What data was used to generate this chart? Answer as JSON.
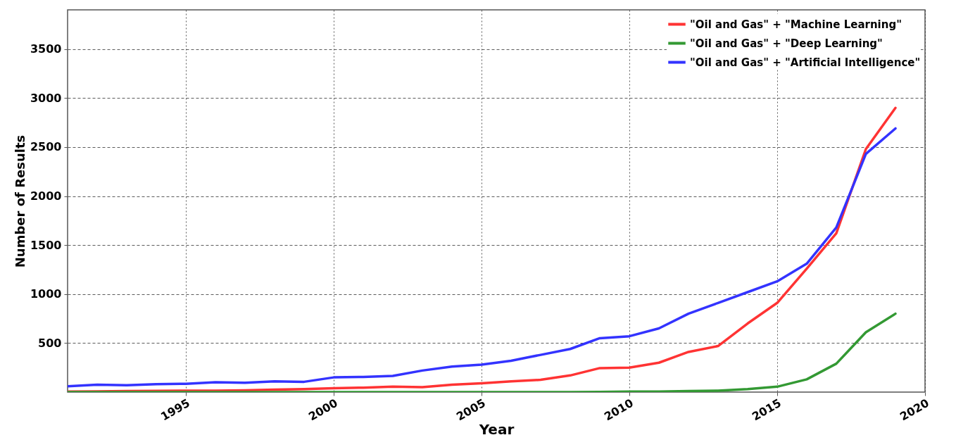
{
  "chart_data": {
    "type": "line",
    "xlabel": "Year",
    "ylabel": "Number of Results",
    "x": [
      1991,
      1992,
      1993,
      1994,
      1995,
      1996,
      1997,
      1998,
      1999,
      2000,
      2001,
      2002,
      2003,
      2004,
      2005,
      2006,
      2007,
      2008,
      2009,
      2010,
      2011,
      2012,
      2013,
      2014,
      2015,
      2016,
      2017,
      2018,
      2019
    ],
    "series": [
      {
        "name": "\"Oil and Gas\" + \"Machine Learning\"",
        "color": "#ff3333",
        "values": [
          5,
          8,
          10,
          12,
          15,
          15,
          18,
          25,
          30,
          40,
          45,
          55,
          50,
          75,
          90,
          110,
          125,
          170,
          245,
          250,
          300,
          410,
          470,
          700,
          910,
          1260,
          1620,
          2480,
          2900
        ]
      },
      {
        "name": "\"Oil and Gas\" + \"Deep Learning\"",
        "color": "#339933",
        "values": [
          0,
          0,
          0,
          0,
          0,
          0,
          0,
          0,
          0,
          0,
          0,
          0,
          0,
          0,
          0,
          0,
          0,
          0,
          2,
          5,
          5,
          10,
          15,
          30,
          55,
          130,
          290,
          610,
          800
        ]
      },
      {
        "name": "\"Oil and Gas\" + \"Artificial Intelligence\"",
        "color": "#3333ff",
        "values": [
          60,
          75,
          70,
          80,
          85,
          100,
          95,
          110,
          105,
          150,
          155,
          165,
          220,
          260,
          280,
          320,
          380,
          440,
          550,
          570,
          650,
          800,
          910,
          1020,
          1130,
          1310,
          1680,
          2430,
          2690
        ]
      }
    ],
    "xlim": [
      1991,
      2020
    ],
    "xticks": [
      1995,
      2000,
      2005,
      2010,
      2015,
      2020
    ],
    "ylim": [
      0,
      3900
    ],
    "yticks": [
      500,
      1000,
      1500,
      2000,
      2500,
      3000,
      3500
    ],
    "grid": true,
    "legend": "top right",
    "marker": "none",
    "line_style": "solid"
  }
}
